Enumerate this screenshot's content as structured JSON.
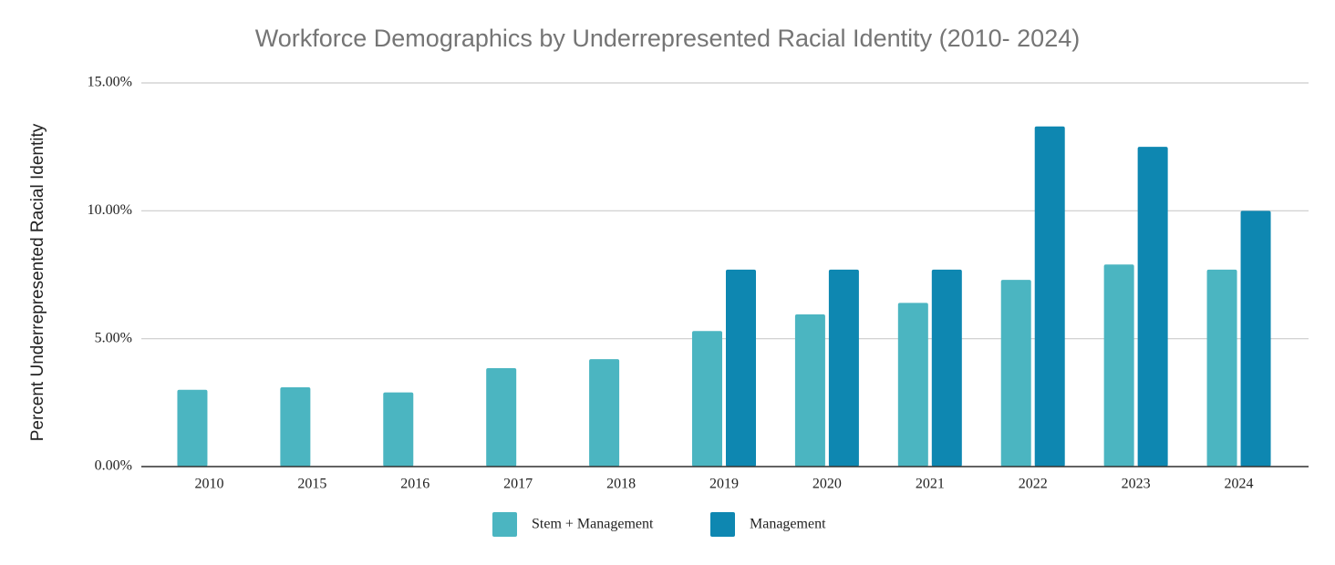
{
  "chart_data": {
    "type": "bar",
    "title": "Workforce Demographics by Underrepresented Racial Identity (2010- 2024)",
    "y_label": "Percent Underrepresented Racial Identity",
    "categories": [
      "2010",
      "2015",
      "2016",
      "2017",
      "2018",
      "2019",
      "2020",
      "2021",
      "2022",
      "2023",
      "2024"
    ],
    "series": [
      {
        "name": "Stem + Management",
        "color": "#4bb5c1",
        "values": [
          3.0,
          3.1,
          2.9,
          3.85,
          4.2,
          5.3,
          5.95,
          6.4,
          7.3,
          7.9,
          7.7
        ]
      },
      {
        "name": "Management",
        "color": "#0e87b1",
        "values": [
          null,
          null,
          null,
          null,
          null,
          7.7,
          7.7,
          7.7,
          13.3,
          12.5,
          10.0
        ]
      }
    ],
    "ylim": [
      0,
      15
    ],
    "yticks": [
      {
        "value": 0,
        "label": "0.00%"
      },
      {
        "value": 5,
        "label": "5.00%"
      },
      {
        "value": 10,
        "label": "10.00%"
      },
      {
        "value": 15,
        "label": "15.00%"
      }
    ],
    "grid": true,
    "legend": "bottom"
  }
}
